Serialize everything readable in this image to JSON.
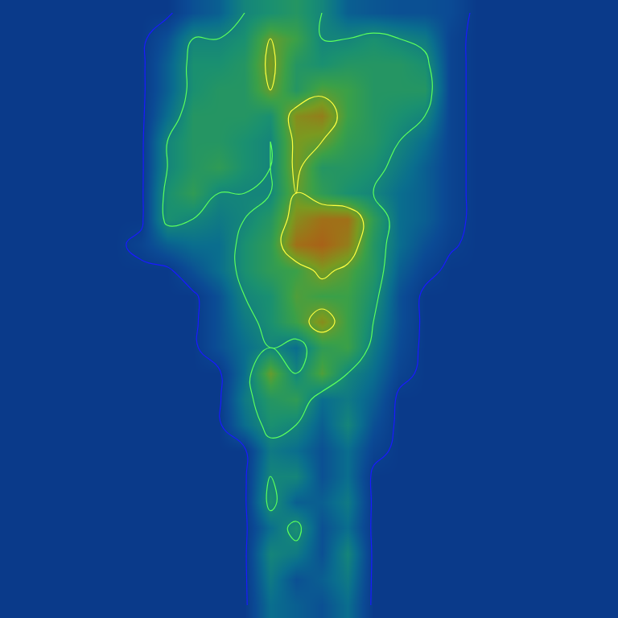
{
  "chart_data": {
    "type": "contour",
    "tick_labels": false,
    "zlim": [
      0,
      1
    ],
    "contour_levels": [
      0.02,
      0.3,
      0.6,
      0.85
    ],
    "colors": [
      "#1a1aff",
      "#5cff5c",
      "#ffff40",
      "#ff4030"
    ],
    "cells": [
      [
        0,
        0,
        0,
        0,
        0,
        0,
        0,
        0.1,
        0.15,
        0.3,
        0.35,
        0.4,
        0.3,
        0.15,
        0.12,
        0.1,
        0.1,
        0.08,
        0,
        0,
        0,
        0,
        0,
        0
      ],
      [
        0,
        0,
        0,
        0,
        0,
        0,
        0.1,
        0.3,
        0.3,
        0.35,
        0.6,
        0.5,
        0.3,
        0.3,
        0.35,
        0.3,
        0.25,
        0.05,
        0,
        0,
        0,
        0,
        0,
        0
      ],
      [
        0,
        0,
        0,
        0,
        0,
        0,
        0.15,
        0.35,
        0.35,
        0.4,
        0.65,
        0.4,
        0.35,
        0.4,
        0.4,
        0.4,
        0.35,
        0.05,
        0,
        0,
        0,
        0,
        0,
        0
      ],
      [
        0,
        0,
        0,
        0,
        0,
        0,
        0.15,
        0.35,
        0.4,
        0.4,
        0.6,
        0.4,
        0.55,
        0.5,
        0.4,
        0.4,
        0.4,
        0.05,
        0,
        0,
        0,
        0,
        0,
        0
      ],
      [
        0,
        0,
        0,
        0,
        0,
        0,
        0.2,
        0.4,
        0.4,
        0.4,
        0.35,
        0.7,
        0.75,
        0.5,
        0.4,
        0.35,
        0.3,
        0.05,
        0,
        0,
        0,
        0,
        0,
        0
      ],
      [
        0,
        0,
        0,
        0,
        0,
        0,
        0.3,
        0.4,
        0.4,
        0.35,
        0.3,
        0.65,
        0.6,
        0.45,
        0.4,
        0.3,
        0.2,
        0.05,
        0,
        0,
        0,
        0,
        0,
        0
      ],
      [
        0,
        0,
        0,
        0,
        0,
        0,
        0.3,
        0.4,
        0.45,
        0.35,
        0.3,
        0.65,
        0.4,
        0.4,
        0.35,
        0.25,
        0.15,
        0.05,
        0,
        0,
        0,
        0,
        0,
        0
      ],
      [
        0,
        0,
        0,
        0,
        0,
        0,
        0.35,
        0.45,
        0.3,
        0.3,
        0.3,
        0.6,
        0.45,
        0.35,
        0.3,
        0.2,
        0.15,
        0.05,
        0,
        0,
        0,
        0,
        0,
        0
      ],
      [
        0,
        0,
        0,
        0,
        0,
        0,
        0.35,
        0.3,
        0.25,
        0.3,
        0.4,
        0.7,
        0.8,
        0.8,
        0.45,
        0.2,
        0.15,
        0.05,
        0,
        0,
        0,
        0,
        0,
        0
      ],
      [
        0,
        0,
        0,
        0,
        0,
        0.05,
        0.15,
        0.2,
        0.2,
        0.35,
        0.45,
        0.8,
        0.85,
        0.75,
        0.4,
        0.2,
        0.1,
        0.03,
        0,
        0,
        0,
        0,
        0,
        0
      ],
      [
        0,
        0,
        0,
        0,
        0,
        0,
        0,
        0.1,
        0.2,
        0.35,
        0.45,
        0.5,
        0.65,
        0.55,
        0.4,
        0.15,
        0.05,
        0,
        0,
        0,
        0,
        0,
        0,
        0
      ],
      [
        0,
        0,
        0,
        0,
        0,
        0,
        0,
        0,
        0.1,
        0.3,
        0.35,
        0.55,
        0.5,
        0.5,
        0.35,
        0.1,
        0,
        0,
        0,
        0,
        0,
        0,
        0,
        0
      ],
      [
        0,
        0,
        0,
        0,
        0,
        0,
        0,
        0,
        0.1,
        0.25,
        0.35,
        0.5,
        0.7,
        0.5,
        0.3,
        0.1,
        0,
        0,
        0,
        0,
        0,
        0,
        0,
        0
      ],
      [
        0,
        0,
        0,
        0,
        0,
        0,
        0,
        0,
        0.1,
        0.2,
        0.3,
        0.2,
        0.45,
        0.5,
        0.25,
        0.08,
        0,
        0,
        0,
        0,
        0,
        0,
        0,
        0
      ],
      [
        0,
        0,
        0,
        0,
        0,
        0,
        0,
        0,
        0,
        0.2,
        0.6,
        0.3,
        0.55,
        0.3,
        0.2,
        0.05,
        0,
        0,
        0,
        0,
        0,
        0,
        0,
        0
      ],
      [
        0,
        0,
        0,
        0,
        0,
        0,
        0,
        0,
        0,
        0.25,
        0.4,
        0.45,
        0.2,
        0.25,
        0.15,
        0,
        0,
        0,
        0,
        0,
        0,
        0,
        0,
        0
      ],
      [
        0,
        0,
        0,
        0,
        0,
        0,
        0,
        0,
        0,
        0.2,
        0.35,
        0.3,
        0.15,
        0.3,
        0.1,
        0,
        0,
        0,
        0,
        0,
        0,
        0,
        0,
        0
      ],
      [
        0,
        0,
        0,
        0,
        0,
        0,
        0,
        0,
        0,
        0,
        0.25,
        0.2,
        0.1,
        0.2,
        0.05,
        0,
        0,
        0,
        0,
        0,
        0,
        0,
        0,
        0
      ],
      [
        0,
        0,
        0,
        0,
        0,
        0,
        0,
        0,
        0,
        0,
        0.3,
        0.3,
        0.1,
        0.2,
        0,
        0,
        0,
        0,
        0,
        0,
        0,
        0,
        0,
        0
      ],
      [
        0,
        0,
        0,
        0,
        0,
        0,
        0,
        0,
        0,
        0,
        0.35,
        0.15,
        0.15,
        0.25,
        0,
        0,
        0,
        0,
        0,
        0,
        0,
        0,
        0,
        0
      ],
      [
        0,
        0,
        0,
        0,
        0,
        0,
        0,
        0,
        0,
        0,
        0.2,
        0.35,
        0.1,
        0.2,
        0,
        0,
        0,
        0,
        0,
        0,
        0,
        0,
        0,
        0
      ],
      [
        0,
        0,
        0,
        0,
        0,
        0,
        0,
        0,
        0,
        0,
        0.3,
        0.25,
        0.1,
        0.3,
        0,
        0,
        0,
        0,
        0,
        0,
        0,
        0,
        0,
        0
      ],
      [
        0,
        0,
        0,
        0,
        0,
        0,
        0,
        0,
        0,
        0,
        0.25,
        0.1,
        0.15,
        0.25,
        0,
        0,
        0,
        0,
        0,
        0,
        0,
        0,
        0,
        0
      ],
      [
        0,
        0,
        0,
        0,
        0,
        0,
        0,
        0,
        0,
        0,
        0.2,
        0.15,
        0.1,
        0.2,
        0,
        0,
        0,
        0,
        0,
        0,
        0,
        0,
        0,
        0
      ]
    ]
  }
}
